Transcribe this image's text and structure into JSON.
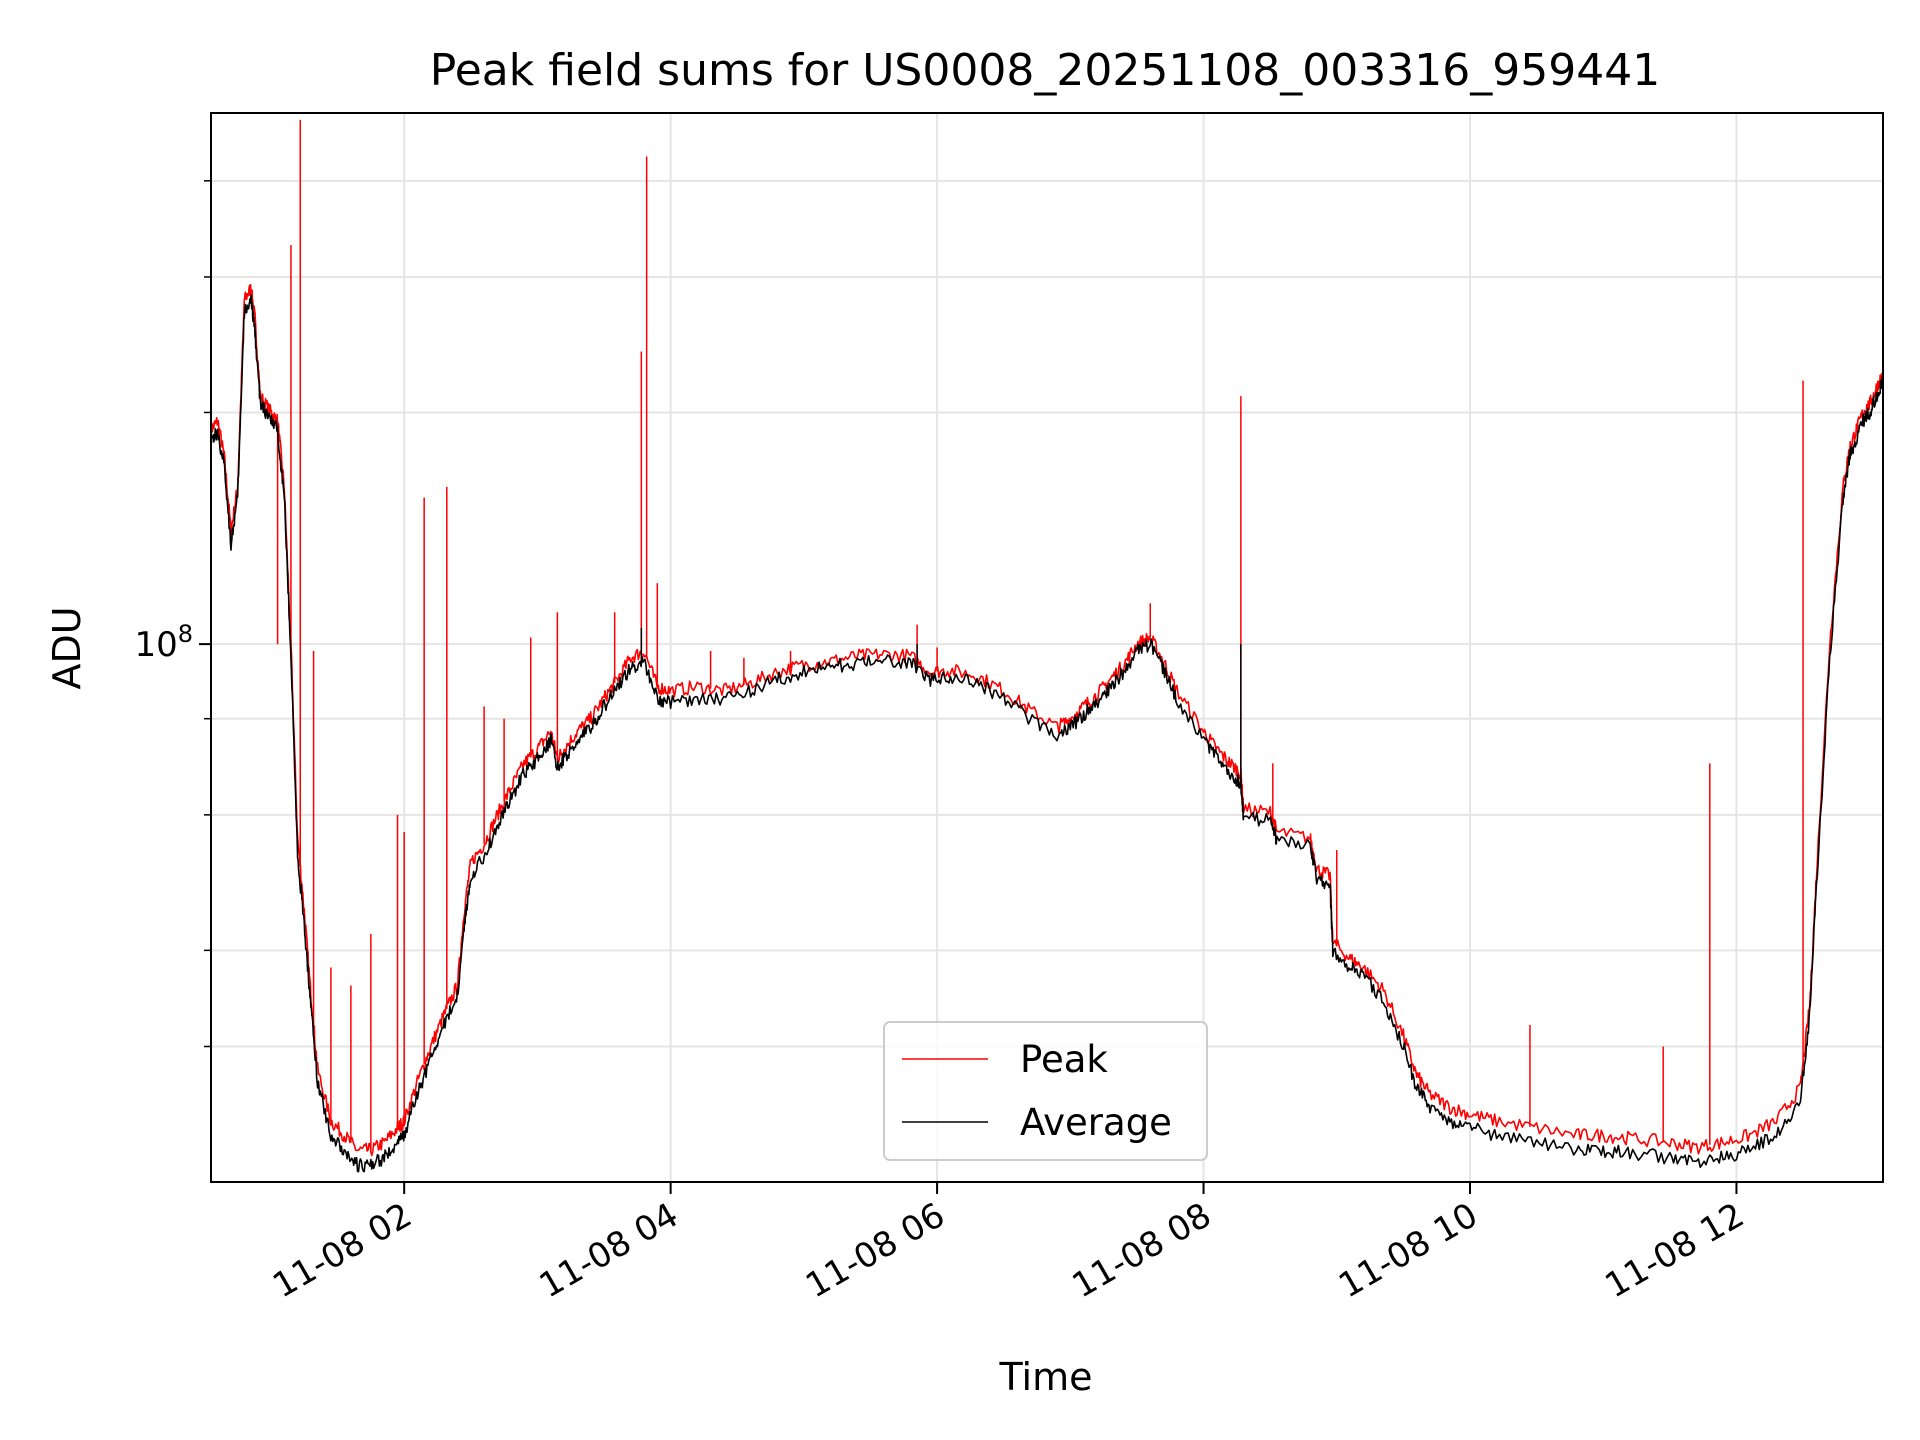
{
  "chart_data": {
    "type": "line",
    "title": "Peak field sums for US0008_20251108_003316_959441",
    "xlabel": "Time",
    "ylabel": "ADU",
    "y_scale": "log",
    "ylim": [
      20000000,
      490000000
    ],
    "y_major_tick": {
      "value": 100000000,
      "label_base": "10",
      "label_exp": "8"
    },
    "y_minor_ticks": [
      30000000,
      40000000,
      60000000,
      80000000,
      200000000,
      300000000,
      400000000
    ],
    "xlim_hours": [
      0.55,
      13.1
    ],
    "x_ticks": [
      {
        "hour": 2,
        "label": "11-08 02"
      },
      {
        "hour": 4,
        "label": "11-08 04"
      },
      {
        "hour": 6,
        "label": "11-08 06"
      },
      {
        "hour": 8,
        "label": "11-08 08"
      },
      {
        "hour": 10,
        "label": "11-08 10"
      },
      {
        "hour": 12,
        "label": "11-08 12"
      }
    ],
    "grid": true,
    "legend_position": "lower-center",
    "series": [
      {
        "name": "Peak",
        "color": "#ff0000",
        "points": [
          [
            0.55,
            190000000.0
          ],
          [
            0.6,
            195000000.0
          ],
          [
            0.65,
            175000000.0
          ],
          [
            0.7,
            140000000.0
          ],
          [
            0.75,
            160000000.0
          ],
          [
            0.8,
            280000000.0
          ],
          [
            0.85,
            290000000.0
          ],
          [
            0.88,
            265000000.0
          ],
          [
            0.92,
            210000000.0
          ],
          [
            1.0,
            200000000.0
          ],
          [
            1.05,
            195000000.0
          ],
          [
            1.1,
            160000000.0
          ],
          [
            1.15,
            100000000.0
          ],
          [
            1.2,
            56000000.0
          ],
          [
            1.25,
            45000000.0
          ],
          [
            1.3,
            35000000.0
          ],
          [
            1.35,
            28000000.0
          ],
          [
            1.45,
            24000000.0
          ],
          [
            1.55,
            23000000.0
          ],
          [
            1.65,
            22000000.0
          ],
          [
            1.75,
            22000000.0
          ],
          [
            1.85,
            22500000.0
          ],
          [
            1.95,
            23500000.0
          ],
          [
            2.0,
            24000000.0
          ],
          [
            2.1,
            27000000.0
          ],
          [
            2.2,
            30000000.0
          ],
          [
            2.3,
            33000000.0
          ],
          [
            2.4,
            36000000.0
          ],
          [
            2.45,
            45000000.0
          ],
          [
            2.5,
            52000000.0
          ],
          [
            2.6,
            55000000.0
          ],
          [
            2.7,
            60000000.0
          ],
          [
            2.8,
            65000000.0
          ],
          [
            2.9,
            70000000.0
          ],
          [
            3.0,
            73000000.0
          ],
          [
            3.1,
            77000000.0
          ],
          [
            3.15,
            71000000.0
          ],
          [
            3.2,
            73000000.0
          ],
          [
            3.3,
            77000000.0
          ],
          [
            3.4,
            80000000.0
          ],
          [
            3.5,
            85000000.0
          ],
          [
            3.6,
            90000000.0
          ],
          [
            3.7,
            96000000.0
          ],
          [
            3.8,
            98000000.0
          ],
          [
            3.9,
            88000000.0
          ],
          [
            4.0,
            87000000.0
          ],
          [
            4.2,
            88000000.0
          ],
          [
            4.4,
            87000000.0
          ],
          [
            4.6,
            89000000.0
          ],
          [
            4.8,
            92000000.0
          ],
          [
            5.0,
            94000000.0
          ],
          [
            5.2,
            95000000.0
          ],
          [
            5.4,
            96500000.0
          ],
          [
            5.6,
            97000000.0
          ],
          [
            5.8,
            96500000.0
          ],
          [
            5.95,
            92000000.0
          ],
          [
            6.1,
            92500000.0
          ],
          [
            6.3,
            91000000.0
          ],
          [
            6.5,
            87000000.0
          ],
          [
            6.7,
            82000000.0
          ],
          [
            6.9,
            78000000.0
          ],
          [
            7.0,
            80000000.0
          ],
          [
            7.1,
            83000000.0
          ],
          [
            7.2,
            86000000.0
          ],
          [
            7.3,
            90000000.0
          ],
          [
            7.4,
            94000000.0
          ],
          [
            7.5,
            100000000.0
          ],
          [
            7.6,
            102000000.0
          ],
          [
            7.7,
            95000000.0
          ],
          [
            7.8,
            87000000.0
          ],
          [
            8.0,
            77000000.0
          ],
          [
            8.1,
            73000000.0
          ],
          [
            8.2,
            70000000.0
          ],
          [
            8.28,
            68000000.0
          ],
          [
            8.3,
            61000000.0
          ],
          [
            8.5,
            60500000.0
          ],
          [
            8.55,
            57000000.0
          ],
          [
            8.8,
            56000000.0
          ],
          [
            8.85,
            51000000.0
          ],
          [
            8.95,
            50000000.0
          ],
          [
            8.97,
            41000000.0
          ],
          [
            9.1,
            39000000.0
          ],
          [
            9.2,
            38000000.0
          ],
          [
            9.35,
            35500000.0
          ],
          [
            9.5,
            31000000.0
          ],
          [
            9.6,
            27500000.0
          ],
          [
            9.7,
            26000000.0
          ],
          [
            9.85,
            25000000.0
          ],
          [
            10.0,
            24500000.0
          ],
          [
            10.2,
            24000000.0
          ],
          [
            10.5,
            23500000.0
          ],
          [
            10.8,
            23000000.0
          ],
          [
            11.0,
            23000000.0
          ],
          [
            11.2,
            22800000.0
          ],
          [
            11.5,
            22500000.0
          ],
          [
            11.7,
            22200000.0
          ],
          [
            11.9,
            22500000.0
          ],
          [
            12.1,
            23000000.0
          ],
          [
            12.3,
            24000000.0
          ],
          [
            12.48,
            26500000.0
          ],
          [
            12.55,
            34000000.0
          ],
          [
            12.6,
            50000000.0
          ],
          [
            12.7,
            100000000.0
          ],
          [
            12.8,
            160000000.0
          ],
          [
            12.85,
            180000000.0
          ],
          [
            12.9,
            190000000.0
          ],
          [
            12.95,
            200000000.0
          ],
          [
            13.0,
            205000000.0
          ],
          [
            13.05,
            215000000.0
          ],
          [
            13.1,
            225000000.0
          ],
          [
            13.15,
            240000000.0
          ],
          [
            13.2,
            250000000.0
          ],
          [
            13.25,
            255000000.0
          ],
          [
            13.3,
            280000000.0
          ],
          [
            13.32,
            250000000.0
          ],
          [
            13.35,
            220000000.0
          ],
          [
            13.4,
            240000000.0
          ],
          [
            13.5,
            245000000.0
          ],
          [
            13.6,
            250000000.0
          ]
        ],
        "spikes": [
          [
            1.05,
            100000000.0
          ],
          [
            1.15,
            330000000.0
          ],
          [
            1.22,
            480000000.0
          ],
          [
            1.32,
            98000000.0
          ],
          [
            1.45,
            38000000.0
          ],
          [
            1.6,
            36000000.0
          ],
          [
            1.75,
            42000000.0
          ],
          [
            1.95,
            60000000.0
          ],
          [
            2.0,
            57000000.0
          ],
          [
            2.15,
            155000000.0
          ],
          [
            2.32,
            160000000.0
          ],
          [
            2.6,
            83000000.0
          ],
          [
            2.75,
            80000000.0
          ],
          [
            2.95,
            102000000.0
          ],
          [
            3.15,
            110000000.0
          ],
          [
            3.58,
            110000000.0
          ],
          [
            3.78,
            240000000.0
          ],
          [
            3.82,
            430000000.0
          ],
          [
            3.9,
            120000000.0
          ],
          [
            4.3,
            98000000.0
          ],
          [
            4.55,
            96000000.0
          ],
          [
            4.9,
            98000000.0
          ],
          [
            5.85,
            106000000.0
          ],
          [
            6.0,
            99000000.0
          ],
          [
            7.6,
            113000000.0
          ],
          [
            8.28,
            210000000.0
          ],
          [
            8.52,
            70000000.0
          ],
          [
            9.0,
            54000000.0
          ],
          [
            10.45,
            32000000.0
          ],
          [
            11.45,
            30000000.0
          ],
          [
            11.8,
            70000000.0
          ],
          [
            12.5,
            220000000.0
          ],
          [
            13.3,
            360000000.0
          ]
        ]
      },
      {
        "name": "Average",
        "color": "#000000",
        "points": [
          [
            0.55,
            185000000.0
          ],
          [
            0.6,
            188000000.0
          ],
          [
            0.65,
            170000000.0
          ],
          [
            0.7,
            135000000.0
          ],
          [
            0.75,
            155000000.0
          ],
          [
            0.8,
            270000000.0
          ],
          [
            0.85,
            280000000.0
          ],
          [
            0.88,
            255000000.0
          ],
          [
            0.92,
            205000000.0
          ],
          [
            1.0,
            195000000.0
          ],
          [
            1.05,
            190000000.0
          ],
          [
            1.1,
            155000000.0
          ],
          [
            1.15,
            97000000.0
          ],
          [
            1.2,
            53000000.0
          ],
          [
            1.25,
            43000000.0
          ],
          [
            1.3,
            34000000.0
          ],
          [
            1.35,
            27000000.0
          ],
          [
            1.45,
            23000000.0
          ],
          [
            1.55,
            22000000.0
          ],
          [
            1.65,
            21000000.0
          ],
          [
            1.75,
            21000000.0
          ],
          [
            1.85,
            21500000.0
          ],
          [
            1.95,
            22500000.0
          ],
          [
            2.0,
            23000000.0
          ],
          [
            2.1,
            26000000.0
          ],
          [
            2.2,
            29000000.0
          ],
          [
            2.3,
            32000000.0
          ],
          [
            2.4,
            35000000.0
          ],
          [
            2.45,
            43000000.0
          ],
          [
            2.5,
            50000000.0
          ],
          [
            2.6,
            53000000.0
          ],
          [
            2.7,
            58000000.0
          ],
          [
            2.8,
            63000000.0
          ],
          [
            2.9,
            68000000.0
          ],
          [
            3.0,
            71000000.0
          ],
          [
            3.1,
            75000000.0
          ],
          [
            3.15,
            69000000.0
          ],
          [
            3.2,
            71000000.0
          ],
          [
            3.3,
            75000000.0
          ],
          [
            3.4,
            78000000.0
          ],
          [
            3.5,
            83000000.0
          ],
          [
            3.6,
            88000000.0
          ],
          [
            3.7,
            93000000.0
          ],
          [
            3.8,
            95000000.0
          ],
          [
            3.9,
            85000000.0
          ],
          [
            4.0,
            84000000.0
          ],
          [
            4.2,
            85000000.0
          ],
          [
            4.4,
            85000000.0
          ],
          [
            4.6,
            87000000.0
          ],
          [
            4.8,
            90000000.0
          ],
          [
            5.0,
            92000000.0
          ],
          [
            5.2,
            93500000.0
          ],
          [
            5.4,
            94500000.0
          ],
          [
            5.6,
            95000000.0
          ],
          [
            5.8,
            94500000.0
          ],
          [
            5.95,
            90000000.0
          ],
          [
            6.1,
            90500000.0
          ],
          [
            6.3,
            89000000.0
          ],
          [
            6.5,
            85000000.0
          ],
          [
            6.7,
            80000000.0
          ],
          [
            6.9,
            76000000.0
          ],
          [
            7.0,
            78000000.0
          ],
          [
            7.1,
            81000000.0
          ],
          [
            7.2,
            84000000.0
          ],
          [
            7.3,
            88000000.0
          ],
          [
            7.4,
            92000000.0
          ],
          [
            7.5,
            98000000.0
          ],
          [
            7.6,
            100000000.0
          ],
          [
            7.7,
            93000000.0
          ],
          [
            7.8,
            85000000.0
          ],
          [
            8.0,
            75000000.0
          ],
          [
            8.1,
            71000000.0
          ],
          [
            8.2,
            68000000.0
          ],
          [
            8.28,
            66000000.0
          ],
          [
            8.3,
            59500000.0
          ],
          [
            8.5,
            59000000.0
          ],
          [
            8.55,
            55500000.0
          ],
          [
            8.8,
            54500000.0
          ],
          [
            8.85,
            49500000.0
          ],
          [
            8.95,
            48500000.0
          ],
          [
            8.97,
            40000000.0
          ],
          [
            9.1,
            38000000.0
          ],
          [
            9.2,
            37000000.0
          ],
          [
            9.35,
            34500000.0
          ],
          [
            9.5,
            30000000.0
          ],
          [
            9.6,
            26500000.0
          ],
          [
            9.7,
            25000000.0
          ],
          [
            9.85,
            24000000.0
          ],
          [
            10.0,
            23500000.0
          ],
          [
            10.2,
            23000000.0
          ],
          [
            10.5,
            22500000.0
          ],
          [
            10.8,
            22000000.0
          ],
          [
            11.0,
            22000000.0
          ],
          [
            11.2,
            21800000.0
          ],
          [
            11.5,
            21500000.0
          ],
          [
            11.7,
            21200000.0
          ],
          [
            11.9,
            21500000.0
          ],
          [
            12.1,
            22000000.0
          ],
          [
            12.3,
            23000000.0
          ],
          [
            12.48,
            25500000.0
          ],
          [
            12.55,
            33000000.0
          ],
          [
            12.6,
            48000000.0
          ],
          [
            12.7,
            96000000.0
          ],
          [
            12.8,
            155000000.0
          ],
          [
            12.85,
            175000000.0
          ],
          [
            12.9,
            185000000.0
          ],
          [
            12.95,
            195000000.0
          ],
          [
            13.0,
            200000000.0
          ],
          [
            13.05,
            210000000.0
          ],
          [
            13.1,
            220000000.0
          ],
          [
            13.15,
            235000000.0
          ],
          [
            13.2,
            245000000.0
          ],
          [
            13.25,
            250000000.0
          ],
          [
            13.3,
            275000000.0
          ],
          [
            13.32,
            245000000.0
          ],
          [
            13.35,
            215000000.0
          ],
          [
            13.4,
            235000000.0
          ],
          [
            13.5,
            240000000.0
          ],
          [
            13.6,
            245000000.0
          ]
        ],
        "spikes": [
          [
            3.78,
            105000000.0
          ],
          [
            5.85,
            100000000.0
          ],
          [
            8.28,
            100000000.0
          ],
          [
            13.3,
            290000000.0
          ]
        ]
      }
    ]
  }
}
